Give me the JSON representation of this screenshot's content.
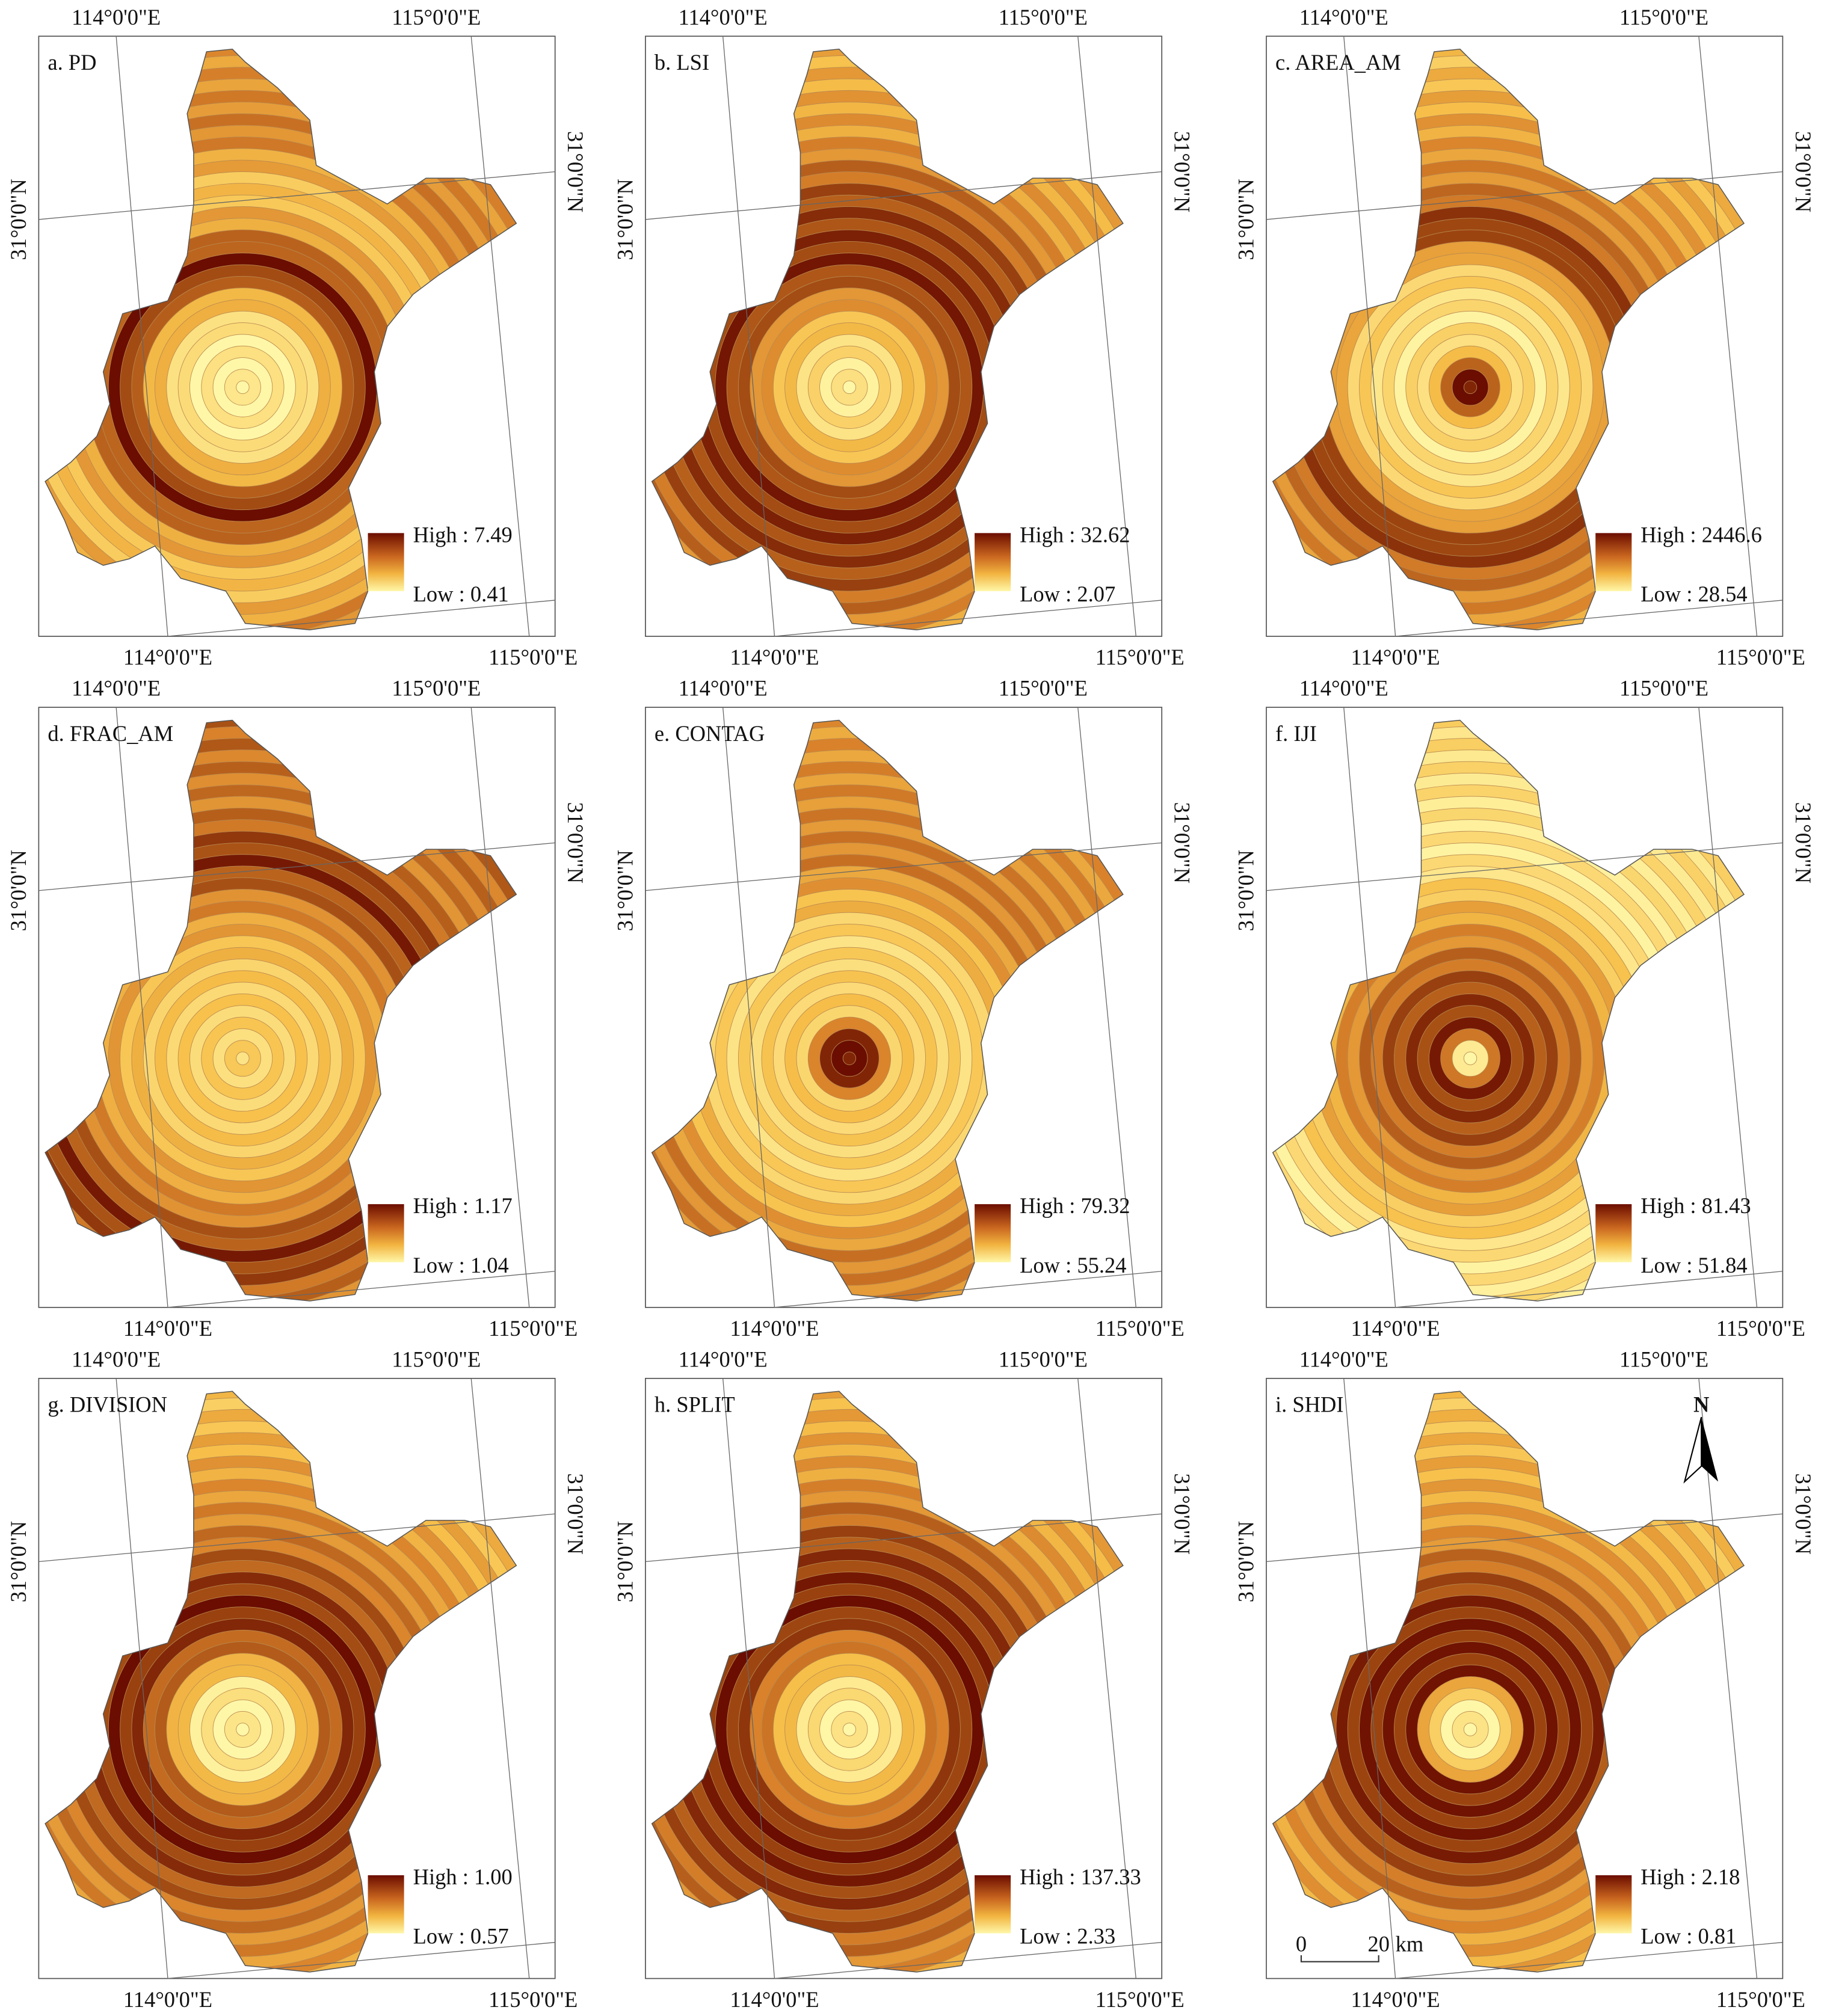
{
  "graticule": {
    "lon_114": "114°0'0\"E",
    "lon_115": "115°0'0\"E",
    "lat_31": "31°0'0\"N"
  },
  "panels": [
    {
      "title": "a. PD",
      "legend_high": "High : 7.49",
      "legend_low": "Low : 0.41"
    },
    {
      "title": "b. LSI",
      "legend_high": "High : 32.62",
      "legend_low": "Low : 2.07"
    },
    {
      "title": "c. AREA_AM",
      "legend_high": "High : 2446.6",
      "legend_low": "Low : 28.54"
    },
    {
      "title": "d. FRAC_AM",
      "legend_high": "High : 1.17",
      "legend_low": "Low : 1.04"
    },
    {
      "title": "e. CONTAG",
      "legend_high": "High : 79.32",
      "legend_low": "Low : 55.24"
    },
    {
      "title": "f. IJI",
      "legend_high": "High : 81.43",
      "legend_low": "Low : 51.84"
    },
    {
      "title": "g. DIVISION",
      "legend_high": "High : 1.00",
      "legend_low": "Low : 0.57"
    },
    {
      "title": "h. SPLIT",
      "legend_high": "High : 137.33",
      "legend_low": "Low : 2.33"
    },
    {
      "title": "i. SHDI",
      "legend_high": "High : 2.18",
      "legend_low": "Low : 0.81"
    }
  ],
  "north_arrow": "N",
  "scale_bar": {
    "start": "0",
    "end": "20",
    "unit": "km"
  }
}
